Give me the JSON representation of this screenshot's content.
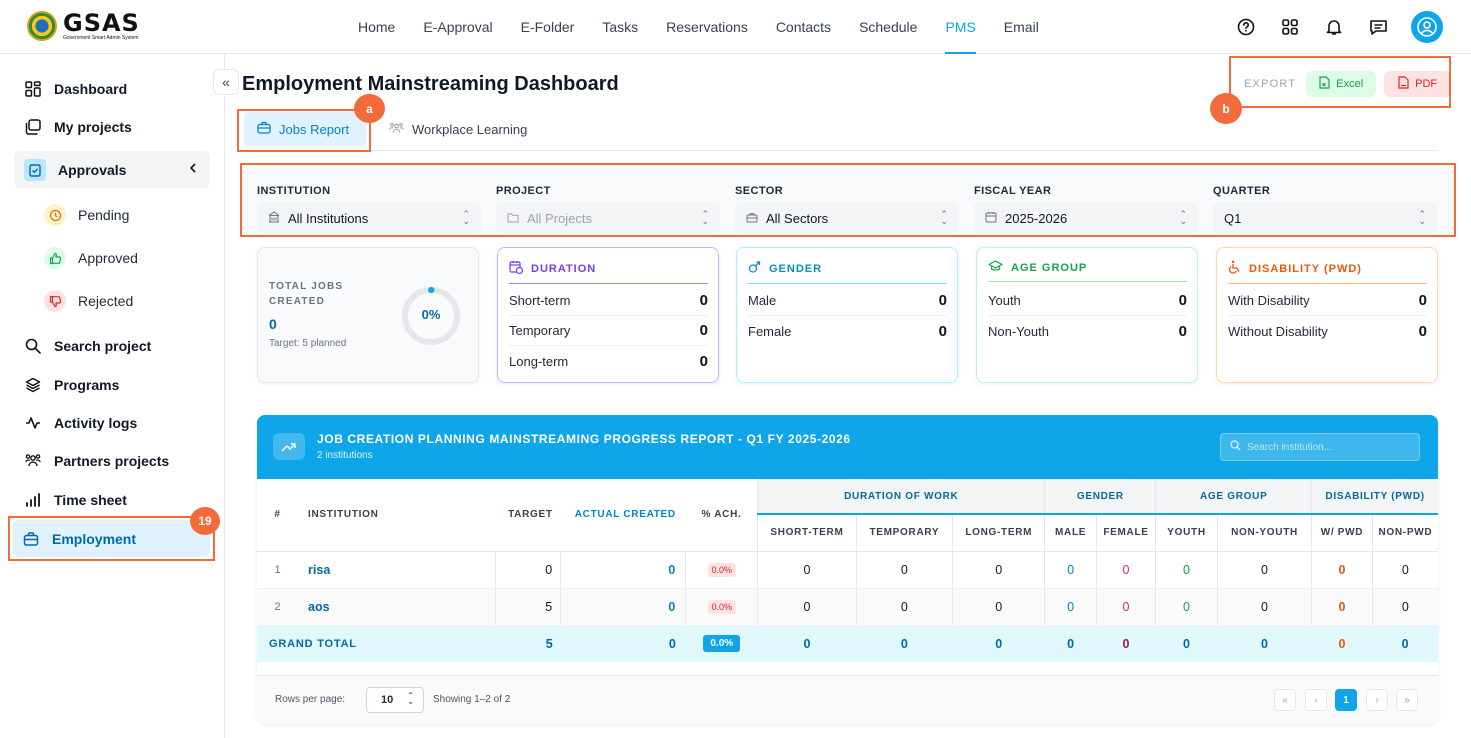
{
  "app": {
    "logo_name": "GSAS",
    "logo_subtitle": "Government Smart Admin System"
  },
  "nav": {
    "items": [
      "Home",
      "E-Approval",
      "E-Folder",
      "Tasks",
      "Reservations",
      "Contacts",
      "Schedule",
      "PMS",
      "Email"
    ],
    "active": "PMS"
  },
  "sidebar": {
    "items": {
      "dashboard": "Dashboard",
      "my_projects": "My projects",
      "approvals": "Approvals",
      "pending": "Pending",
      "approved": "Approved",
      "rejected": "Rejected",
      "search_project": "Search project",
      "programs": "Programs",
      "activity_logs": "Activity logs",
      "partners_projects": "Partners projects",
      "time_sheet": "Time sheet",
      "employment": "Employment"
    },
    "collapse_glyph": "«"
  },
  "annotations": {
    "a": "a",
    "b": "b",
    "n19": "19"
  },
  "page": {
    "title": "Employment Mainstreaming Dashboard"
  },
  "export": {
    "label": "EXPORT",
    "excel": "Excel",
    "pdf": "PDF"
  },
  "tabs": {
    "jobs_report": "Jobs Report",
    "workplace_learning": "Workplace Learning"
  },
  "filters": {
    "institution": {
      "label": "INSTITUTION",
      "value": "All Institutions"
    },
    "project": {
      "label": "PROJECT",
      "value": "All Projects"
    },
    "sector": {
      "label": "SECTOR",
      "value": "All Sectors"
    },
    "fiscal_year": {
      "label": "FISCAL YEAR",
      "value": "2025-2026"
    },
    "quarter": {
      "label": "QUARTER",
      "value": "Q1"
    }
  },
  "total_jobs": {
    "label": "TOTAL JOBS CREATED",
    "value": "0",
    "target": "Target: 5 planned",
    "percent_label": "0%",
    "percent": 0
  },
  "cards": {
    "duration": {
      "title": "DURATION",
      "color": "#7c3aed",
      "rows": [
        {
          "label": "Short-term",
          "value": "0"
        },
        {
          "label": "Temporary",
          "value": "0"
        },
        {
          "label": "Long-term",
          "value": "0"
        }
      ]
    },
    "gender": {
      "title": "GENDER",
      "color": "#0891b2",
      "rows": [
        {
          "label": "Male",
          "value": "0"
        },
        {
          "label": "Female",
          "value": "0"
        }
      ]
    },
    "age": {
      "title": "AGE GROUP",
      "color": "#16a34a",
      "rows": [
        {
          "label": "Youth",
          "value": "0"
        },
        {
          "label": "Non-Youth",
          "value": "0"
        }
      ]
    },
    "disability": {
      "title": "DISABILITY (PWD)",
      "color": "#ea580c",
      "rows": [
        {
          "label": "With Disability",
          "value": "0"
        },
        {
          "label": "Without Disability",
          "value": "0"
        }
      ]
    }
  },
  "report": {
    "title": "JOB CREATION PLANNING MAINSTREAMING PROGRESS REPORT - Q1 FY 2025-2026",
    "subtitle": "2 institutions",
    "search_placeholder": "Search institution...",
    "headers": {
      "num": "#",
      "institution": "INSTITUTION",
      "target": "TARGET",
      "actual": "ACTUAL CREATED",
      "pct": "% ACH.",
      "duration_group": "DURATION OF WORK",
      "gender_group": "GENDER",
      "age_group": "AGE GROUP",
      "pwd_group": "DISABILITY (PWD)",
      "short": "SHORT-TERM",
      "temp": "TEMPORARY",
      "long": "LONG-TERM",
      "male": "MALE",
      "female": "FEMALE",
      "youth": "YOUTH",
      "nonyouth": "NON-YOUTH",
      "wpwd": "W/ PWD",
      "nonpwd": "NON-PWD"
    },
    "rows": [
      {
        "num": "1",
        "institution": "risa",
        "target": "0",
        "actual": "0",
        "pct": "0.0%",
        "short": "0",
        "temp": "0",
        "long": "0",
        "male": "0",
        "female": "0",
        "youth": "0",
        "nonyouth": "0",
        "wpwd": "0",
        "nonpwd": "0"
      },
      {
        "num": "2",
        "institution": "aos",
        "target": "5",
        "actual": "0",
        "pct": "0.0%",
        "short": "0",
        "temp": "0",
        "long": "0",
        "male": "0",
        "female": "0",
        "youth": "0",
        "nonyouth": "0",
        "wpwd": "0",
        "nonpwd": "0"
      }
    ],
    "grand_total": {
      "label": "GRAND TOTAL",
      "target": "5",
      "actual": "0",
      "pct": "0.0%",
      "short": "0",
      "temp": "0",
      "long": "0",
      "male": "0",
      "female": "0",
      "youth": "0",
      "nonyouth": "0",
      "wpwd": "0",
      "nonpwd": "0"
    },
    "footer": {
      "rows_per_page_label": "Rows per page:",
      "rows_per_page": "10",
      "showing": "Showing 1–2 of 2",
      "current_page": "1"
    }
  },
  "colors": {
    "accent": "#0ea5e9",
    "highlight": "#f26b3a"
  }
}
